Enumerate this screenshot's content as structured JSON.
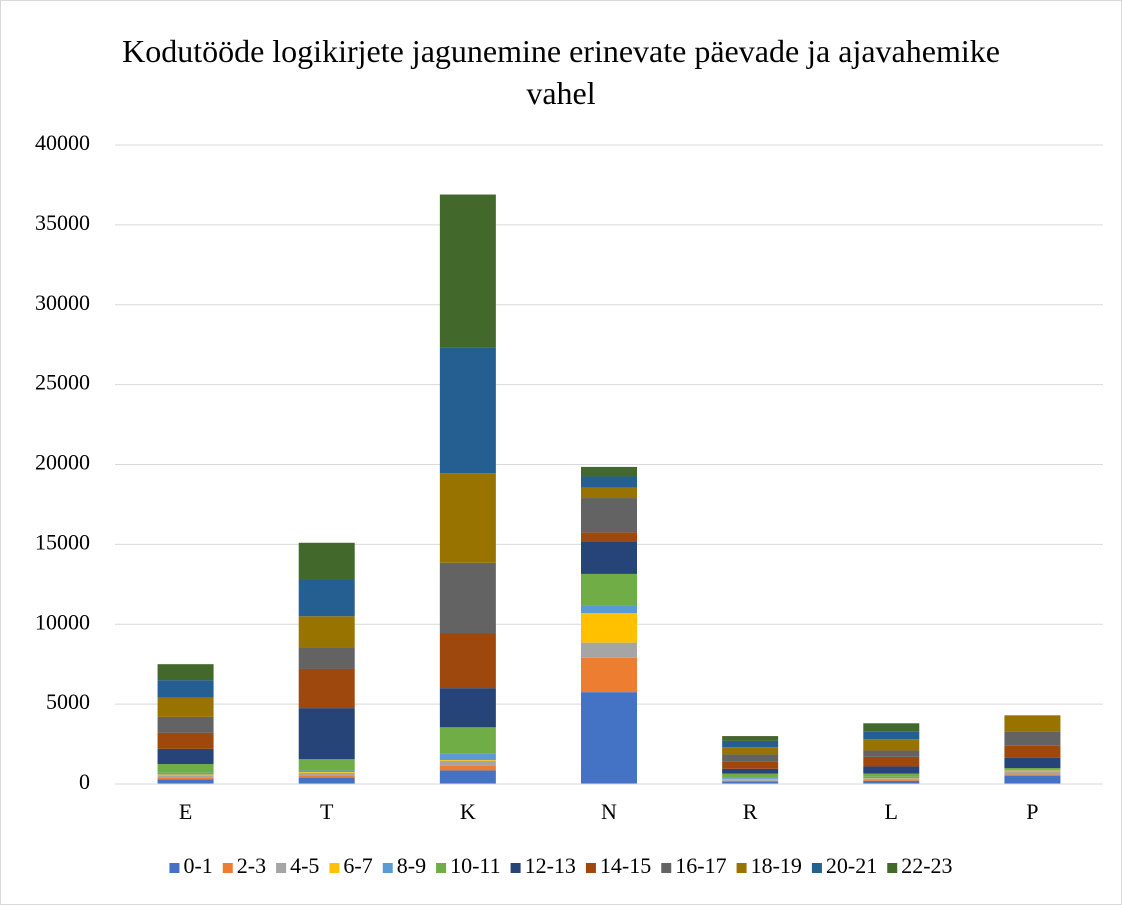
{
  "chart_data": {
    "type": "stacked_bar",
    "title": "Kodutööde logikirjete jagunemine erinevate päevade ja ajavahemike vahel",
    "categories": [
      "E",
      "T",
      "K",
      "N",
      "R",
      "L",
      "P"
    ],
    "series": [
      {
        "name": "0-1",
        "color": "#4472c4",
        "values": [
          300,
          400,
          850,
          5750,
          150,
          200,
          500
        ]
      },
      {
        "name": "2-3",
        "color": "#ed7d31",
        "values": [
          100,
          100,
          300,
          2150,
          50,
          50,
          100
        ]
      },
      {
        "name": "4-5",
        "color": "#a5a5a5",
        "values": [
          150,
          200,
          300,
          950,
          100,
          100,
          200
        ]
      },
      {
        "name": "6-7",
        "color": "#ffc000",
        "values": [
          50,
          50,
          50,
          1850,
          20,
          20,
          50
        ]
      },
      {
        "name": "8-9",
        "color": "#5b9bd5",
        "values": [
          100,
          100,
          400,
          500,
          80,
          80,
          50
        ]
      },
      {
        "name": "10-11",
        "color": "#70ad47",
        "values": [
          550,
          700,
          1650,
          1950,
          250,
          200,
          100
        ]
      },
      {
        "name": "12-13",
        "color": "#264478",
        "values": [
          950,
          3200,
          2450,
          2050,
          300,
          450,
          650
        ]
      },
      {
        "name": "14-15",
        "color": "#9e480e",
        "values": [
          1000,
          2450,
          3450,
          550,
          450,
          600,
          750
        ]
      },
      {
        "name": "16-17",
        "color": "#636363",
        "values": [
          1000,
          1350,
          4400,
          2150,
          450,
          400,
          900
        ]
      },
      {
        "name": "18-19",
        "color": "#997300",
        "values": [
          1200,
          1950,
          5600,
          650,
          450,
          700,
          1000
        ]
      },
      {
        "name": "20-21",
        "color": "#255e91",
        "values": [
          1100,
          2300,
          7850,
          700,
          400,
          500,
          0
        ]
      },
      {
        "name": "22-23",
        "color": "#43682b",
        "values": [
          1000,
          2300,
          9600,
          600,
          300,
          500,
          0
        ]
      }
    ],
    "ylim": [
      0,
      40000
    ],
    "yticks": [
      0,
      5000,
      10000,
      15000,
      20000,
      25000,
      30000,
      35000,
      40000
    ],
    "grid": true,
    "legend": "bottom"
  }
}
